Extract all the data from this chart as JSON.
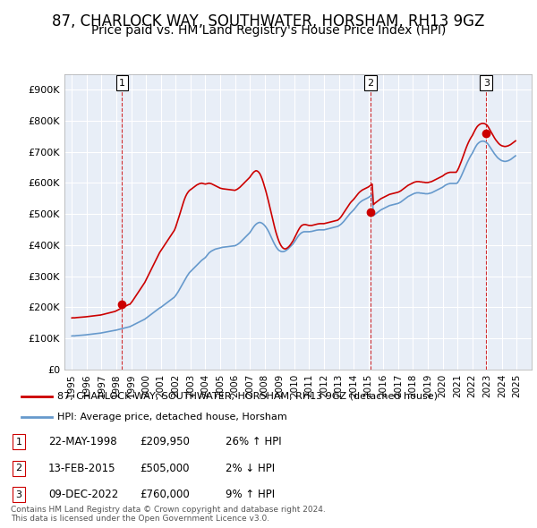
{
  "title": "87, CHARLOCK WAY, SOUTHWATER, HORSHAM, RH13 9GZ",
  "subtitle": "Price paid vs. HM Land Registry's House Price Index (HPI)",
  "title_fontsize": 12,
  "subtitle_fontsize": 10,
  "background_color": "#ffffff",
  "plot_bg_color": "#e8eef7",
  "grid_color": "#ffffff",
  "red_color": "#cc0000",
  "blue_color": "#6699cc",
  "dashed_color": "#cc0000",
  "ylim": [
    0,
    950000
  ],
  "yticks": [
    0,
    100000,
    200000,
    300000,
    400000,
    500000,
    600000,
    700000,
    800000,
    900000
  ],
  "ytick_labels": [
    "£0",
    "£100K",
    "£200K",
    "£300K",
    "£400K",
    "£500K",
    "£600K",
    "£700K",
    "£800K",
    "£900K"
  ],
  "xlim_start": 1994.5,
  "xlim_end": 2026.0,
  "xticks": [
    1995,
    1996,
    1997,
    1998,
    1999,
    2000,
    2001,
    2002,
    2003,
    2004,
    2005,
    2006,
    2007,
    2008,
    2009,
    2010,
    2011,
    2012,
    2013,
    2014,
    2015,
    2016,
    2017,
    2018,
    2019,
    2020,
    2021,
    2022,
    2023,
    2024,
    2025
  ],
  "sales": [
    {
      "date_year": 1998.39,
      "price": 209950,
      "label": "1"
    },
    {
      "date_year": 2015.12,
      "price": 505000,
      "label": "2"
    },
    {
      "date_year": 2022.94,
      "price": 760000,
      "label": "3"
    }
  ],
  "table_rows": [
    {
      "num": "1",
      "date": "22-MAY-1998",
      "price": "£209,950",
      "hpi": "26% ↑ HPI"
    },
    {
      "num": "2",
      "date": "13-FEB-2015",
      "price": "£505,000",
      "hpi": "2% ↓ HPI"
    },
    {
      "num": "3",
      "date": "09-DEC-2022",
      "price": "£760,000",
      "hpi": "9% ↑ HPI"
    }
  ],
  "legend_line1": "87, CHARLOCK WAY, SOUTHWATER, HORSHAM, RH13 9GZ (detached house)",
  "legend_line2": "HPI: Average price, detached house, Horsham",
  "footer": "Contains HM Land Registry data © Crown copyright and database right 2024.\nThis data is licensed under the Open Government Licence v3.0.",
  "hpi_data": {
    "years": [
      1995.0,
      1995.083,
      1995.167,
      1995.25,
      1995.333,
      1995.417,
      1995.5,
      1995.583,
      1995.667,
      1995.75,
      1995.833,
      1995.917,
      1996.0,
      1996.083,
      1996.167,
      1996.25,
      1996.333,
      1996.417,
      1996.5,
      1996.583,
      1996.667,
      1996.75,
      1996.833,
      1996.917,
      1997.0,
      1997.083,
      1997.167,
      1997.25,
      1997.333,
      1997.417,
      1997.5,
      1997.583,
      1997.667,
      1997.75,
      1997.833,
      1997.917,
      1998.0,
      1998.083,
      1998.167,
      1998.25,
      1998.333,
      1998.417,
      1998.5,
      1998.583,
      1998.667,
      1998.75,
      1998.833,
      1998.917,
      1999.0,
      1999.083,
      1999.167,
      1999.25,
      1999.333,
      1999.417,
      1999.5,
      1999.583,
      1999.667,
      1999.75,
      1999.833,
      1999.917,
      2000.0,
      2000.083,
      2000.167,
      2000.25,
      2000.333,
      2000.417,
      2000.5,
      2000.583,
      2000.667,
      2000.75,
      2000.833,
      2000.917,
      2001.0,
      2001.083,
      2001.167,
      2001.25,
      2001.333,
      2001.417,
      2001.5,
      2001.583,
      2001.667,
      2001.75,
      2001.833,
      2001.917,
      2002.0,
      2002.083,
      2002.167,
      2002.25,
      2002.333,
      2002.417,
      2002.5,
      2002.583,
      2002.667,
      2002.75,
      2002.833,
      2002.917,
      2003.0,
      2003.083,
      2003.167,
      2003.25,
      2003.333,
      2003.417,
      2003.5,
      2003.583,
      2003.667,
      2003.75,
      2003.833,
      2003.917,
      2004.0,
      2004.083,
      2004.167,
      2004.25,
      2004.333,
      2004.417,
      2004.5,
      2004.583,
      2004.667,
      2004.75,
      2004.833,
      2004.917,
      2005.0,
      2005.083,
      2005.167,
      2005.25,
      2005.333,
      2005.417,
      2005.5,
      2005.583,
      2005.667,
      2005.75,
      2005.833,
      2005.917,
      2006.0,
      2006.083,
      2006.167,
      2006.25,
      2006.333,
      2006.417,
      2006.5,
      2006.583,
      2006.667,
      2006.75,
      2006.833,
      2006.917,
      2007.0,
      2007.083,
      2007.167,
      2007.25,
      2007.333,
      2007.417,
      2007.5,
      2007.583,
      2007.667,
      2007.75,
      2007.833,
      2007.917,
      2008.0,
      2008.083,
      2008.167,
      2008.25,
      2008.333,
      2008.417,
      2008.5,
      2008.583,
      2008.667,
      2008.75,
      2008.833,
      2008.917,
      2009.0,
      2009.083,
      2009.167,
      2009.25,
      2009.333,
      2009.417,
      2009.5,
      2009.583,
      2009.667,
      2009.75,
      2009.833,
      2009.917,
      2010.0,
      2010.083,
      2010.167,
      2010.25,
      2010.333,
      2010.417,
      2010.5,
      2010.583,
      2010.667,
      2010.75,
      2010.833,
      2010.917,
      2011.0,
      2011.083,
      2011.167,
      2011.25,
      2011.333,
      2011.417,
      2011.5,
      2011.583,
      2011.667,
      2011.75,
      2011.833,
      2011.917,
      2012.0,
      2012.083,
      2012.167,
      2012.25,
      2012.333,
      2012.417,
      2012.5,
      2012.583,
      2012.667,
      2012.75,
      2012.833,
      2012.917,
      2013.0,
      2013.083,
      2013.167,
      2013.25,
      2013.333,
      2013.417,
      2013.5,
      2013.583,
      2013.667,
      2013.75,
      2013.833,
      2013.917,
      2014.0,
      2014.083,
      2014.167,
      2014.25,
      2014.333,
      2014.417,
      2014.5,
      2014.583,
      2014.667,
      2014.75,
      2014.833,
      2014.917,
      2015.0,
      2015.083,
      2015.167,
      2015.25,
      2015.333,
      2015.417,
      2015.5,
      2015.583,
      2015.667,
      2015.75,
      2015.833,
      2015.917,
      2016.0,
      2016.083,
      2016.167,
      2016.25,
      2016.333,
      2016.417,
      2016.5,
      2016.583,
      2016.667,
      2016.75,
      2016.833,
      2016.917,
      2017.0,
      2017.083,
      2017.167,
      2017.25,
      2017.333,
      2017.417,
      2017.5,
      2017.583,
      2017.667,
      2017.75,
      2017.833,
      2017.917,
      2018.0,
      2018.083,
      2018.167,
      2018.25,
      2018.333,
      2018.417,
      2018.5,
      2018.583,
      2018.667,
      2018.75,
      2018.833,
      2018.917,
      2019.0,
      2019.083,
      2019.167,
      2019.25,
      2019.333,
      2019.417,
      2019.5,
      2019.583,
      2019.667,
      2019.75,
      2019.833,
      2019.917,
      2020.0,
      2020.083,
      2020.167,
      2020.25,
      2020.333,
      2020.417,
      2020.5,
      2020.583,
      2020.667,
      2020.75,
      2020.833,
      2020.917,
      2021.0,
      2021.083,
      2021.167,
      2021.25,
      2021.333,
      2021.417,
      2021.5,
      2021.583,
      2021.667,
      2021.75,
      2021.833,
      2021.917,
      2022.0,
      2022.083,
      2022.167,
      2022.25,
      2022.333,
      2022.417,
      2022.5,
      2022.583,
      2022.667,
      2022.75,
      2022.833,
      2022.917,
      2023.0,
      2023.083,
      2023.167,
      2023.25,
      2023.333,
      2023.417,
      2023.5,
      2023.583,
      2023.667,
      2023.75,
      2023.833,
      2023.917,
      2024.0,
      2024.083,
      2024.167,
      2024.25,
      2024.333,
      2024.417,
      2024.5,
      2024.583,
      2024.667,
      2024.75,
      2024.833,
      2024.917
    ],
    "hpi_values": [
      108000,
      108500,
      108200,
      108800,
      109200,
      109500,
      109800,
      110200,
      110500,
      110800,
      111000,
      111500,
      112000,
      112300,
      112800,
      113200,
      113800,
      114200,
      114800,
      115300,
      115800,
      116300,
      116800,
      117200,
      118000,
      118800,
      119500,
      120200,
      121000,
      121800,
      122500,
      123200,
      124000,
      124800,
      125500,
      126200,
      127000,
      128000,
      129000,
      130000,
      131000,
      132000,
      133000,
      134000,
      135000,
      136000,
      137000,
      138000,
      140000,
      142000,
      144000,
      146000,
      148000,
      150000,
      152000,
      154000,
      156000,
      158000,
      160000,
      162000,
      165000,
      168000,
      171000,
      174000,
      177000,
      180000,
      183000,
      186000,
      189000,
      192000,
      195000,
      198000,
      200000,
      203000,
      206000,
      209000,
      212000,
      215000,
      218000,
      221000,
      224000,
      227000,
      230000,
      233000,
      238000,
      244000,
      250000,
      257000,
      264000,
      271000,
      278000,
      285000,
      292000,
      299000,
      305000,
      311000,
      315000,
      319000,
      323000,
      327000,
      331000,
      335000,
      339000,
      343000,
      347000,
      351000,
      354000,
      357000,
      360000,
      365000,
      370000,
      375000,
      378000,
      381000,
      383000,
      385000,
      387000,
      388000,
      389000,
      390000,
      391000,
      392000,
      393000,
      393500,
      394000,
      394500,
      395000,
      395500,
      396000,
      396500,
      397000,
      397500,
      398000,
      400000,
      402000,
      405000,
      408000,
      412000,
      416000,
      420000,
      424000,
      428000,
      432000,
      436000,
      440000,
      446000,
      452000,
      458000,
      463000,
      467000,
      470000,
      472000,
      473000,
      472000,
      470000,
      467000,
      463000,
      458000,
      452000,
      445000,
      437000,
      428000,
      419000,
      411000,
      403000,
      396000,
      390000,
      385000,
      382000,
      380000,
      379000,
      379000,
      380000,
      382000,
      385000,
      388000,
      392000,
      396000,
      400000,
      404000,
      410000,
      416000,
      422000,
      428000,
      433000,
      437000,
      440000,
      442000,
      443000,
      443000,
      443000,
      443000,
      443000,
      443500,
      444000,
      445000,
      446000,
      447000,
      448000,
      448500,
      449000,
      449000,
      449000,
      449000,
      449000,
      450000,
      451000,
      452000,
      453000,
      454000,
      455000,
      456000,
      457000,
      458000,
      459000,
      460000,
      462000,
      465000,
      468000,
      472000,
      476000,
      481000,
      486000,
      491000,
      496000,
      501000,
      505000,
      509000,
      513000,
      518000,
      523000,
      528000,
      533000,
      537000,
      540000,
      543000,
      545000,
      547000,
      549000,
      551000,
      553000,
      556000,
      559000,
      562000,
      495000,
      498000,
      501000,
      504000,
      507000,
      510000,
      513000,
      515000,
      517000,
      519000,
      521000,
      523000,
      525000,
      527000,
      528000,
      529000,
      530000,
      531000,
      532000,
      533000,
      534000,
      536000,
      538000,
      541000,
      544000,
      547000,
      550000,
      553000,
      556000,
      558000,
      560000,
      562000,
      564000,
      566000,
      567000,
      568000,
      568000,
      568000,
      567000,
      567000,
      566000,
      566000,
      565000,
      565000,
      565000,
      566000,
      567000,
      568000,
      570000,
      572000,
      574000,
      576000,
      578000,
      580000,
      582000,
      584000,
      586000,
      589000,
      592000,
      594000,
      596000,
      597000,
      598000,
      598000,
      598000,
      598000,
      598000,
      598000,
      600000,
      606000,
      613000,
      621000,
      630000,
      639000,
      648000,
      657000,
      666000,
      674000,
      682000,
      689000,
      695000,
      703000,
      711000,
      718000,
      724000,
      728000,
      731000,
      733000,
      734000,
      734000,
      733000,
      731000,
      728000,
      723000,
      717000,
      711000,
      705000,
      699000,
      693000,
      688000,
      683000,
      679000,
      676000,
      673000,
      671000,
      670000,
      669000,
      669000,
      670000,
      671000,
      673000,
      675000,
      678000,
      681000,
      684000,
      687000
    ],
    "red_values": [
      166000,
      166500,
      166200,
      166800,
      167200,
      167500,
      167800,
      168200,
      168500,
      168800,
      169000,
      169500,
      170000,
      170300,
      170800,
      171200,
      171800,
      172200,
      172800,
      173300,
      173800,
      174300,
      174800,
      175200,
      176000,
      177000,
      178000,
      179000,
      180000,
      181000,
      182000,
      183000,
      184000,
      185000,
      186000,
      187000,
      189000,
      191000,
      193000,
      195000,
      197000,
      199000,
      201000,
      203000,
      205000,
      207000,
      209000,
      209950,
      215000,
      220000,
      226000,
      232000,
      238000,
      244000,
      250000,
      256000,
      262000,
      268000,
      274000,
      280000,
      288000,
      296000,
      304000,
      312000,
      320000,
      328000,
      336000,
      344000,
      352000,
      360000,
      368000,
      376000,
      382000,
      388000,
      394000,
      400000,
      406000,
      412000,
      418000,
      424000,
      430000,
      436000,
      442000,
      448000,
      458000,
      470000,
      482000,
      495000,
      508000,
      521000,
      534000,
      546000,
      556000,
      564000,
      570000,
      575000,
      578000,
      581000,
      584000,
      587000,
      590000,
      593000,
      595000,
      597000,
      598000,
      599000,
      598000,
      597000,
      596000,
      597000,
      598000,
      599000,
      598000,
      597000,
      595000,
      593000,
      591000,
      589000,
      587000,
      585000,
      583000,
      582000,
      581000,
      580500,
      580000,
      579500,
      579000,
      578500,
      578000,
      577500,
      577000,
      576500,
      576000,
      578000,
      580000,
      583000,
      586000,
      590000,
      594000,
      598000,
      602000,
      606000,
      610000,
      614000,
      618000,
      624000,
      629000,
      634000,
      637000,
      639000,
      638000,
      635000,
      630000,
      622000,
      612000,
      600000,
      587000,
      573000,
      558000,
      542000,
      525000,
      508000,
      491000,
      474000,
      458000,
      443000,
      430000,
      418000,
      408000,
      400000,
      394000,
      390000,
      388000,
      388000,
      390000,
      393000,
      397000,
      402000,
      408000,
      414000,
      422000,
      430000,
      438000,
      446000,
      453000,
      459000,
      463000,
      465000,
      466000,
      466000,
      465000,
      464000,
      463000,
      463000,
      463000,
      464000,
      465000,
      466000,
      467000,
      468000,
      468500,
      469000,
      469000,
      469000,
      469000,
      470000,
      471000,
      472000,
      473000,
      474000,
      475000,
      476000,
      477000,
      478000,
      479000,
      480000,
      483000,
      487000,
      492000,
      498000,
      504000,
      510000,
      516000,
      522000,
      528000,
      534000,
      539000,
      543000,
      547000,
      552000,
      557000,
      562000,
      567000,
      571000,
      574000,
      577000,
      579000,
      581000,
      583000,
      585000,
      587000,
      590000,
      593000,
      596000,
      530000,
      534000,
      537000,
      540000,
      543000,
      546000,
      549000,
      551000,
      553000,
      555000,
      557000,
      559000,
      561000,
      563000,
      564000,
      565000,
      566000,
      567000,
      568000,
      569000,
      570000,
      572000,
      574000,
      577000,
      580000,
      583000,
      586000,
      589000,
      592000,
      594000,
      596000,
      598000,
      600000,
      602000,
      603000,
      604000,
      604000,
      604000,
      603000,
      603000,
      602000,
      602000,
      601000,
      601000,
      601000,
      602000,
      603000,
      604000,
      606000,
      608000,
      610000,
      612000,
      614000,
      616000,
      618000,
      620000,
      622000,
      625000,
      628000,
      630000,
      632000,
      633000,
      634000,
      634000,
      634000,
      634000,
      634000,
      634000,
      640000,
      648000,
      658000,
      668000,
      679000,
      690000,
      701000,
      712000,
      722000,
      731000,
      739000,
      746000,
      752000,
      760000,
      768000,
      775000,
      781000,
      785000,
      788000,
      790000,
      791000,
      791000,
      790000,
      788000,
      785000,
      779000,
      772000,
      765000,
      758000,
      751000,
      744000,
      738000,
      733000,
      728000,
      724000,
      721000,
      719000,
      718000,
      717000,
      717000,
      718000,
      719000,
      721000,
      723000,
      726000,
      729000,
      732000,
      735000
    ]
  }
}
